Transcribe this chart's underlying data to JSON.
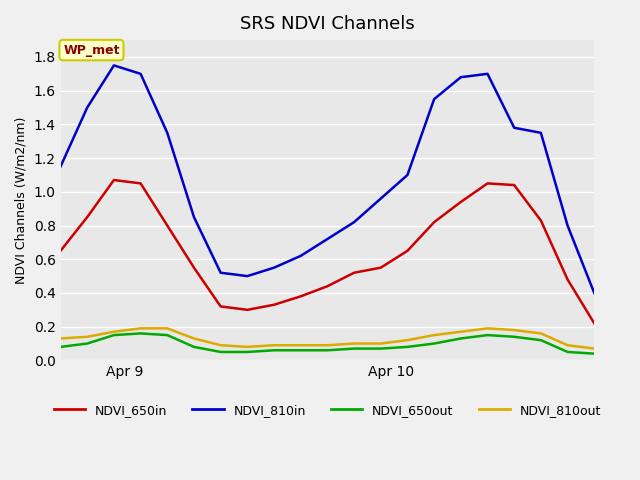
{
  "title": "SRS NDVI Channels",
  "ylabel": "NDVI Channels (W/m2/nm)",
  "annotation": "WP_met",
  "legend_entries": [
    "NDVI_650in",
    "NDVI_810in",
    "NDVI_650out",
    "NDVI_810out"
  ],
  "line_colors": [
    "#cc0000",
    "#0000cc",
    "#00aa00",
    "#ddaa00"
  ],
  "xtick_labels": [
    "Apr 9",
    "Apr 10"
  ],
  "xtick_positions": [
    0.12,
    0.62
  ],
  "ylim": [
    0.0,
    1.9
  ],
  "yticks": [
    0.0,
    0.2,
    0.4,
    0.6,
    0.8,
    1.0,
    1.2,
    1.4,
    1.6,
    1.8
  ],
  "x": [
    0,
    0.05,
    0.1,
    0.15,
    0.2,
    0.25,
    0.3,
    0.35,
    0.4,
    0.45,
    0.5,
    0.55,
    0.6,
    0.65,
    0.7,
    0.75,
    0.8,
    0.85,
    0.9,
    0.95,
    1.0
  ],
  "NDVI_650in": [
    0.65,
    0.85,
    1.07,
    1.05,
    0.8,
    0.55,
    0.32,
    0.3,
    0.33,
    0.38,
    0.44,
    0.52,
    0.55,
    0.65,
    0.82,
    0.94,
    1.05,
    1.04,
    0.83,
    0.48,
    0.22
  ],
  "NDVI_810in": [
    1.15,
    1.5,
    1.75,
    1.7,
    1.35,
    0.85,
    0.52,
    0.5,
    0.55,
    0.62,
    0.72,
    0.82,
    0.96,
    1.1,
    1.55,
    1.68,
    1.7,
    1.38,
    1.35,
    0.8,
    0.4
  ],
  "NDVI_650out": [
    0.08,
    0.1,
    0.15,
    0.16,
    0.15,
    0.08,
    0.05,
    0.05,
    0.06,
    0.06,
    0.06,
    0.07,
    0.07,
    0.08,
    0.1,
    0.13,
    0.15,
    0.14,
    0.12,
    0.05,
    0.04
  ],
  "NDVI_810out": [
    0.13,
    0.14,
    0.17,
    0.19,
    0.19,
    0.13,
    0.09,
    0.08,
    0.09,
    0.09,
    0.09,
    0.1,
    0.1,
    0.12,
    0.15,
    0.17,
    0.19,
    0.18,
    0.16,
    0.09,
    0.07
  ]
}
